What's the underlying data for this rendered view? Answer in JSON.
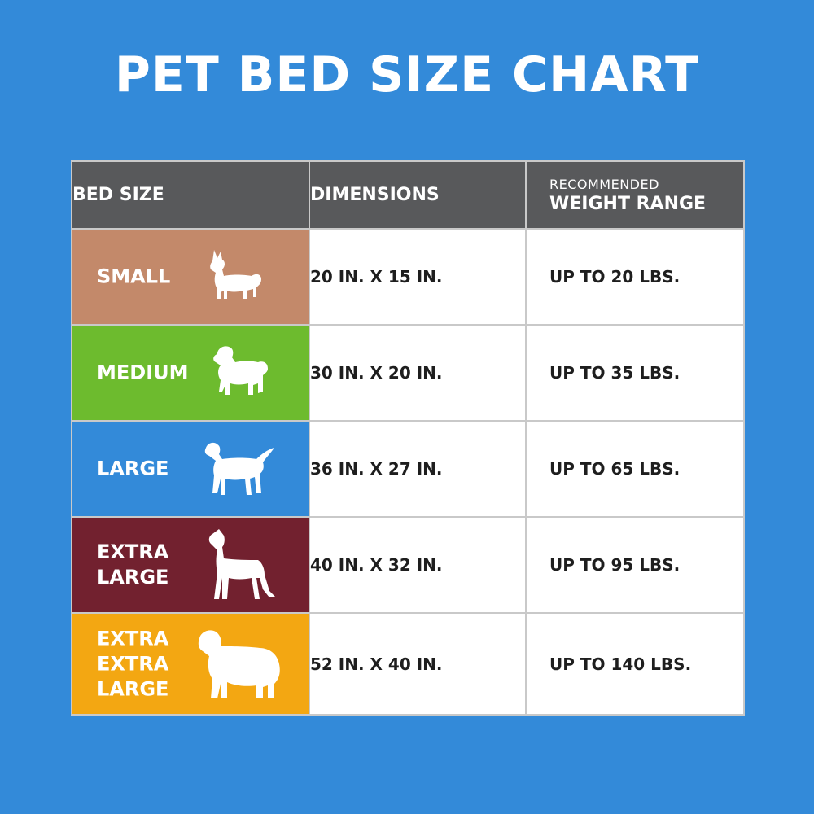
{
  "title": "PET BED SIZE CHART",
  "headers": {
    "bed_size": "BED SIZE",
    "dimensions": "DIMENSIONS",
    "weight_small": "RECOMMENDED",
    "weight_big": "WEIGHT RANGE"
  },
  "colors": {
    "background": "#338ad9",
    "header": "#58595b",
    "small": "#c3896a",
    "medium": "#6dbb2e",
    "large": "#338ad9",
    "extra_large": "#72212f",
    "extra_extra_large": "#f3a712"
  },
  "rows": [
    {
      "size": "SMALL",
      "icon": "small-dog-icon",
      "dimensions": "20 IN. X 15 IN.",
      "weight": "UP TO 20 LBS."
    },
    {
      "size": "MEDIUM",
      "icon": "medium-dog-icon",
      "dimensions": "30 IN. X 20 IN.",
      "weight": "UP TO 35 LBS."
    },
    {
      "size": "LARGE",
      "icon": "large-dog-icon",
      "dimensions": "36 IN. X 27 IN.",
      "weight": "UP TO 65 LBS."
    },
    {
      "size": "EXTRA\nLARGE",
      "icon": "extra-large-dog-icon",
      "dimensions": "40 IN. X 32 IN.",
      "weight": "UP TO 95 LBS."
    },
    {
      "size": "EXTRA\nEXTRA\nLARGE",
      "icon": "extra-extra-large-dog-icon",
      "dimensions": "52 IN. X 40 IN.",
      "weight": "UP TO 140 LBS."
    }
  ]
}
